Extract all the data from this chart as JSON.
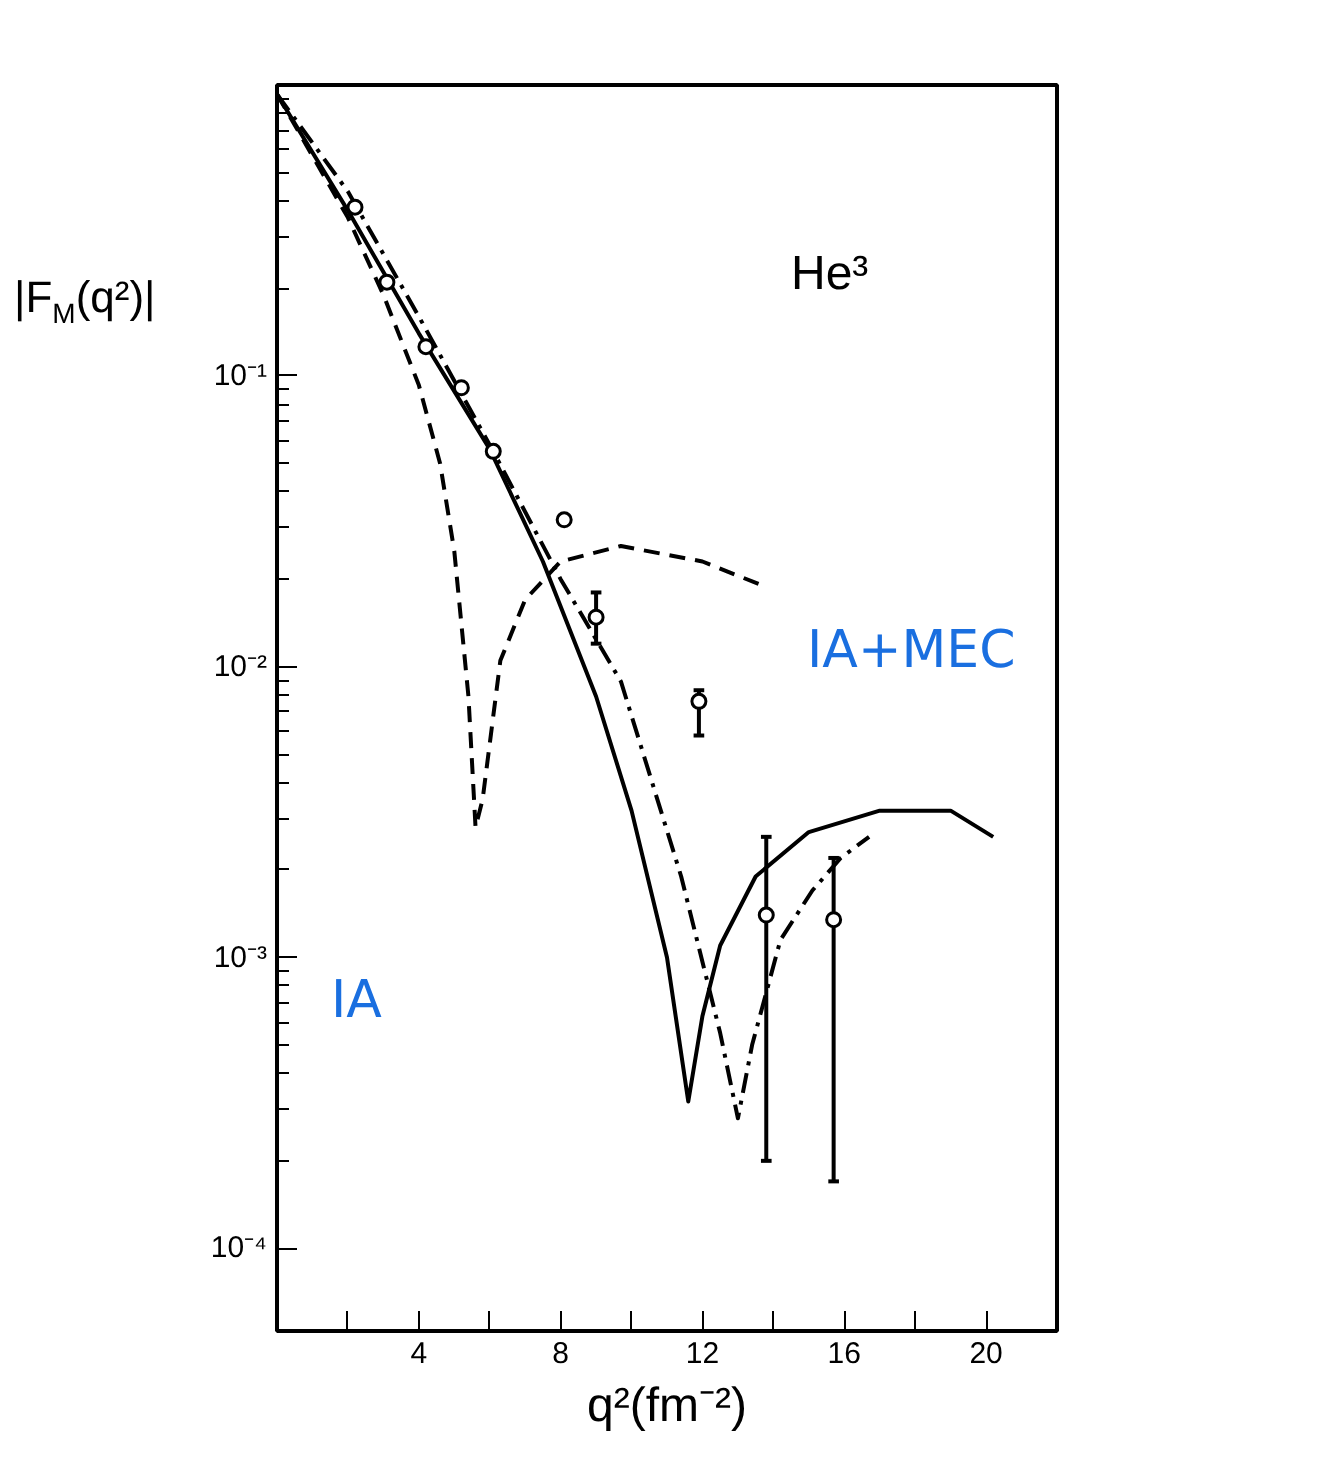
{
  "chart_data": {
    "type": "line",
    "xlabel": "q²(fm⁻²)",
    "ylabel": "|F$_{M}$(q²)|",
    "xlim": [
      0,
      22
    ],
    "ylim": [
      5.2e-05,
      1
    ],
    "xticks": [
      {
        "value": 2,
        "label": null
      },
      4,
      {
        "value": 6,
        "label": null
      },
      8,
      {
        "value": 10,
        "label": null
      },
      12,
      {
        "value": 14,
        "label": null
      },
      16,
      {
        "value": 18,
        "label": null
      },
      20,
      {
        "value": 22,
        "label": null
      }
    ],
    "yticks": [
      {
        "value": 0.1,
        "label": "10⁻¹"
      },
      {
        "value": 0.01,
        "label": "10⁻²"
      },
      {
        "value": 0.001,
        "label": "10⁻³"
      },
      {
        "value": 0.0001,
        "label": "10⁻⁴"
      }
    ],
    "log": "y",
    "grid": false,
    "series": [
      {
        "color": "#000000",
        "line_style": "solid",
        "marker": "none",
        "x": [
          0,
          2,
          4,
          6,
          7.5,
          9,
          10,
          11,
          11.6,
          12,
          12.5,
          13.5,
          15,
          17,
          19,
          20.2
        ],
        "values": [
          0.93,
          0.37,
          0.14,
          0.056,
          0.023,
          0.0079,
          0.0032,
          0.001,
          0.00032,
          0.00063,
          0.0011,
          0.0019,
          0.0027,
          0.0032,
          0.0032,
          0.0026
        ]
      },
      {
        "color": "#000000",
        "line_style": "dashed",
        "marker": "none",
        "x": [
          0,
          2,
          3,
          4,
          4.6,
          5,
          5.4,
          5.6,
          5.8,
          6.3,
          7,
          8,
          9.7,
          12,
          13.7
        ],
        "values": [
          0.93,
          0.35,
          0.19,
          0.093,
          0.05,
          0.025,
          0.0079,
          0.0028,
          0.0035,
          0.0105,
          0.017,
          0.023,
          0.026,
          0.023,
          0.019
        ]
      },
      {
        "color": "#000000",
        "line_style": "dashdot",
        "marker": "none",
        "x": [
          0,
          2,
          4,
          6.1,
          8,
          9.7,
          11.4,
          12.5,
          13,
          13.4,
          14.2,
          15.1,
          15.9,
          16.7
        ],
        "values": [
          0.93,
          0.43,
          0.16,
          0.055,
          0.02,
          0.0089,
          0.0019,
          0.00055,
          0.00028,
          0.0005,
          0.00115,
          0.0017,
          0.0022,
          0.0026
        ]
      },
      {
        "type": "scatter",
        "color": "#000000",
        "marker": "circle",
        "x": [
          2.2,
          3.1,
          4.2,
          5.2,
          6.1,
          8.1,
          9.0,
          11.9,
          13.8,
          15.7
        ],
        "values": [
          0.38,
          0.21,
          0.126,
          0.091,
          0.055,
          0.032,
          0.0148,
          0.0076,
          0.0014,
          0.00135
        ],
        "errors": [
          null,
          null,
          null,
          null,
          null,
          null,
          [
            0.012,
            0.018
          ],
          [
            0.0058,
            0.0083
          ],
          [
            0.0002,
            0.0026
          ],
          [
            0.00017,
            0.0022
          ]
        ]
      }
    ],
    "annotations": [
      "He³",
      "IA+MEC",
      "IA"
    ]
  }
}
